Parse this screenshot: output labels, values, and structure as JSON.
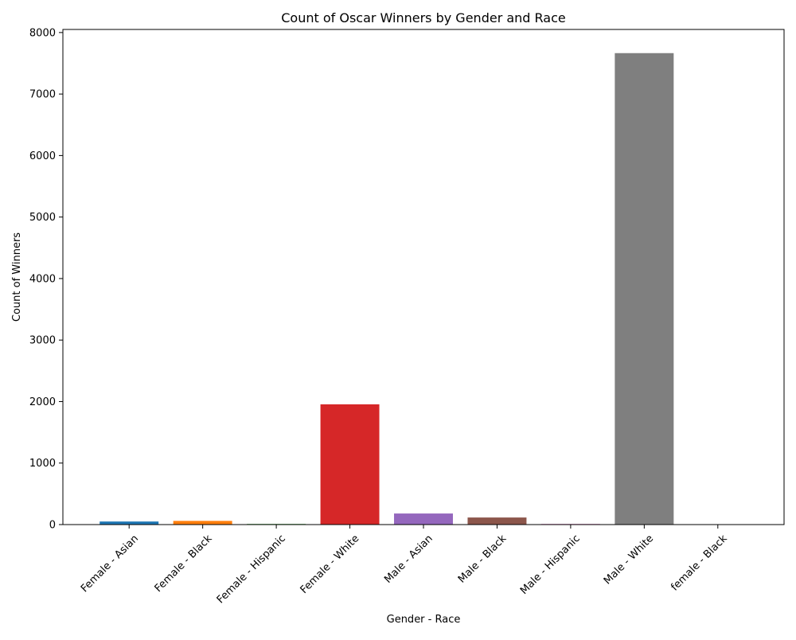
{
  "chart_data": {
    "type": "bar",
    "title": "Count of Oscar Winners by Gender and Race",
    "xlabel": "Gender - Race",
    "ylabel": "Count of Winners",
    "categories": [
      "Female - Asian",
      "Female - Black",
      "Female - Hispanic",
      "Female - White",
      "Male - Asian",
      "Male - Black",
      "Male - Hispanic",
      "Male - White",
      "female - Black"
    ],
    "values": [
      50,
      60,
      10,
      1955,
      180,
      115,
      10,
      7665,
      1
    ],
    "colors": [
      "#1f77b4",
      "#ff7f0e",
      "#2ca02c",
      "#d62728",
      "#9467bd",
      "#8c564b",
      "#e377c2",
      "#7f7f7f",
      "#bcbd22"
    ],
    "yticks": [
      0,
      1000,
      2000,
      3000,
      4000,
      5000,
      6000,
      7000,
      8000
    ],
    "ylim": [
      0,
      8050
    ],
    "grid": false,
    "legend": "none"
  }
}
